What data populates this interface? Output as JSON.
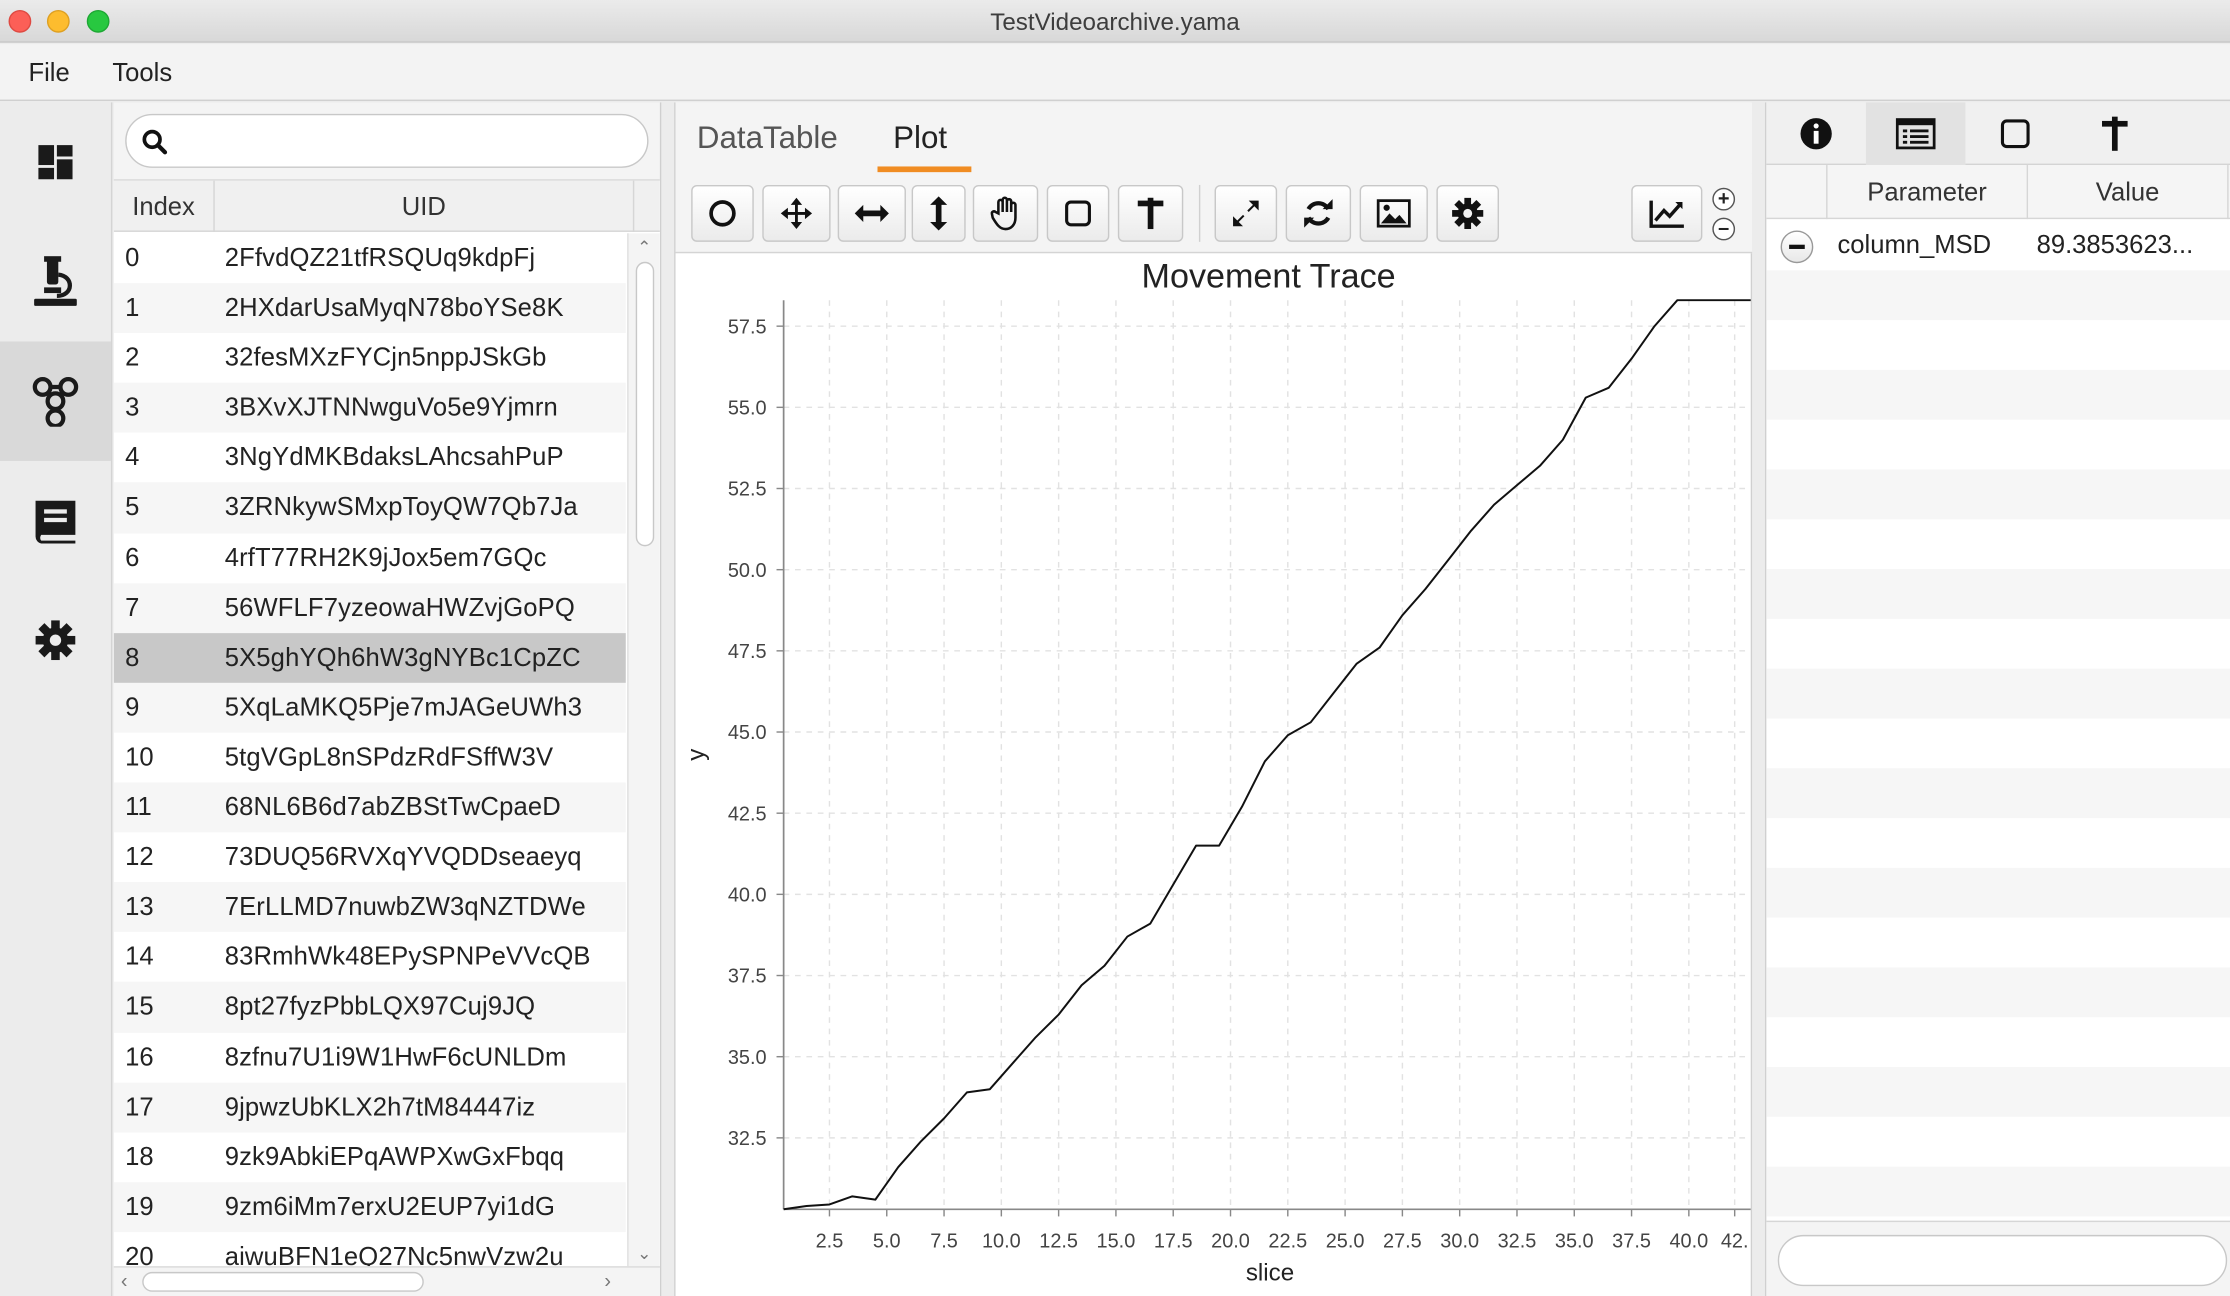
{
  "window": {
    "title": "TestVideoarchive.yama"
  },
  "menu": {
    "file": "File",
    "tools": "Tools"
  },
  "leftnav": {
    "items": [
      {
        "icon": "dashboard-icon",
        "active": false
      },
      {
        "icon": "microscope-icon",
        "active": false
      },
      {
        "icon": "molecule-icon",
        "active": true
      },
      {
        "icon": "book-icon",
        "active": false
      },
      {
        "icon": "gear-icon",
        "active": false
      }
    ]
  },
  "list": {
    "search_value": "",
    "headers": {
      "index": "Index",
      "uid": "UID"
    },
    "selected_index": 8,
    "rows": [
      {
        "index": "0",
        "uid": "2FfvdQZ21tfRSQUq9kdpFj"
      },
      {
        "index": "1",
        "uid": "2HXdarUsaMyqN78boYSe8K"
      },
      {
        "index": "2",
        "uid": "32fesMXzFYCjn5nppJSkGb"
      },
      {
        "index": "3",
        "uid": "3BXvXJTNNwguVo5e9Yjmrn"
      },
      {
        "index": "4",
        "uid": "3NgYdMKBdaksLAhcsahPuP"
      },
      {
        "index": "5",
        "uid": "3ZRNkywSMxpToyQW7Qb7Ja"
      },
      {
        "index": "6",
        "uid": "4rfT77RH2K9jJox5em7GQc"
      },
      {
        "index": "7",
        "uid": "56WFLF7yzeowaHWZvjGoPQ"
      },
      {
        "index": "8",
        "uid": "5X5ghYQh6hW3gNYBc1CpZC"
      },
      {
        "index": "9",
        "uid": "5XqLaMKQ5Pje7mJAGeUWh3"
      },
      {
        "index": "10",
        "uid": "5tgVGpL8nSPdzRdFSffW3V"
      },
      {
        "index": "11",
        "uid": "68NL6B6d7abZBStTwCpaeD"
      },
      {
        "index": "12",
        "uid": "73DUQ56RVXqYVQDDseaeyq"
      },
      {
        "index": "13",
        "uid": "7ErLLMD7nuwbZW3qNZTDWe"
      },
      {
        "index": "14",
        "uid": "83RmhWk48EPySPNPeVVcQB"
      },
      {
        "index": "15",
        "uid": "8pt27fyzPbbLQX97Cuj9JQ"
      },
      {
        "index": "16",
        "uid": "8zfnu7U1i9W1HwF6cUNLDm"
      },
      {
        "index": "17",
        "uid": "9jpwzUbKLX2h7tM84447iz"
      },
      {
        "index": "18",
        "uid": "9zk9AbkiEPqAWPXwGxFbqq"
      },
      {
        "index": "19",
        "uid": "9zm6iMm7erxU2EUP7yi1dG"
      },
      {
        "index": "20",
        "uid": "aiwuBFN1eQ27Nc5nwVzw2u"
      }
    ]
  },
  "center": {
    "tabs": [
      {
        "label": "DataTable",
        "active": false
      },
      {
        "label": "Plot",
        "active": true
      }
    ],
    "toolbar": [
      "circle-tool-icon",
      "move-tool-icon",
      "horizontal-arrow-icon",
      "vertical-arrow-icon",
      "hand-tool-icon",
      "square-tool-icon",
      "marker-tool-icon",
      "expand-icon",
      "refresh-icon",
      "image-icon",
      "gear-icon",
      "chart-line-icon"
    ]
  },
  "chart_data": {
    "type": "line",
    "title": "Movement Trace",
    "xlabel": "slice",
    "ylabel": "y",
    "xlim": [
      0.5,
      42.7
    ],
    "ylim": [
      30.3,
      58.3
    ],
    "xticks": [
      "2.5",
      "5.0",
      "7.5",
      "10.0",
      "12.5",
      "15.0",
      "17.5",
      "20.0",
      "22.5",
      "25.0",
      "27.5",
      "30.0",
      "32.5",
      "35.0",
      "37.5",
      "40.0",
      "42."
    ],
    "yticks": [
      "32.5",
      "35.0",
      "37.5",
      "40.0",
      "42.5",
      "45.0",
      "47.5",
      "50.0",
      "52.5",
      "55.0",
      "57.5"
    ],
    "grid": true,
    "series": [
      {
        "x": [
          0.5,
          1.5,
          2.5,
          3.5,
          4.5,
          5.5,
          6.5,
          7.5,
          8.5,
          9.5,
          10.5,
          11.5,
          12.5,
          13.5,
          14.5,
          15.5,
          16.5,
          17.5,
          18.5,
          19.5,
          20.5,
          21.5,
          22.5,
          23.5,
          24.5,
          25.5,
          26.5,
          27.5,
          28.5,
          29.5,
          30.5,
          31.5,
          32.5,
          33.5,
          34.5,
          35.5,
          36.5,
          37.5,
          38.5,
          39.5,
          40.5,
          42.7
        ],
        "values": [
          30.3,
          30.4,
          30.45,
          30.7,
          30.6,
          31.6,
          32.4,
          33.1,
          33.9,
          34.0,
          34.8,
          35.6,
          36.3,
          37.2,
          37.8,
          38.7,
          39.1,
          40.3,
          41.5,
          41.5,
          42.7,
          44.1,
          44.9,
          45.3,
          46.2,
          47.1,
          47.6,
          48.6,
          49.4,
          50.3,
          51.2,
          52.0,
          52.6,
          53.2,
          54.0,
          55.3,
          55.6,
          56.5,
          57.5,
          58.3,
          58.3,
          58.3
        ]
      }
    ]
  },
  "right": {
    "tabs": [
      "info-icon",
      "list-icon",
      "square-icon",
      "marker-icon"
    ],
    "headers": {
      "parameter": "Parameter",
      "value": "Value"
    },
    "rows": [
      {
        "parameter": "column_MSD",
        "value": "89.3853623..."
      }
    ],
    "search_value": ""
  }
}
